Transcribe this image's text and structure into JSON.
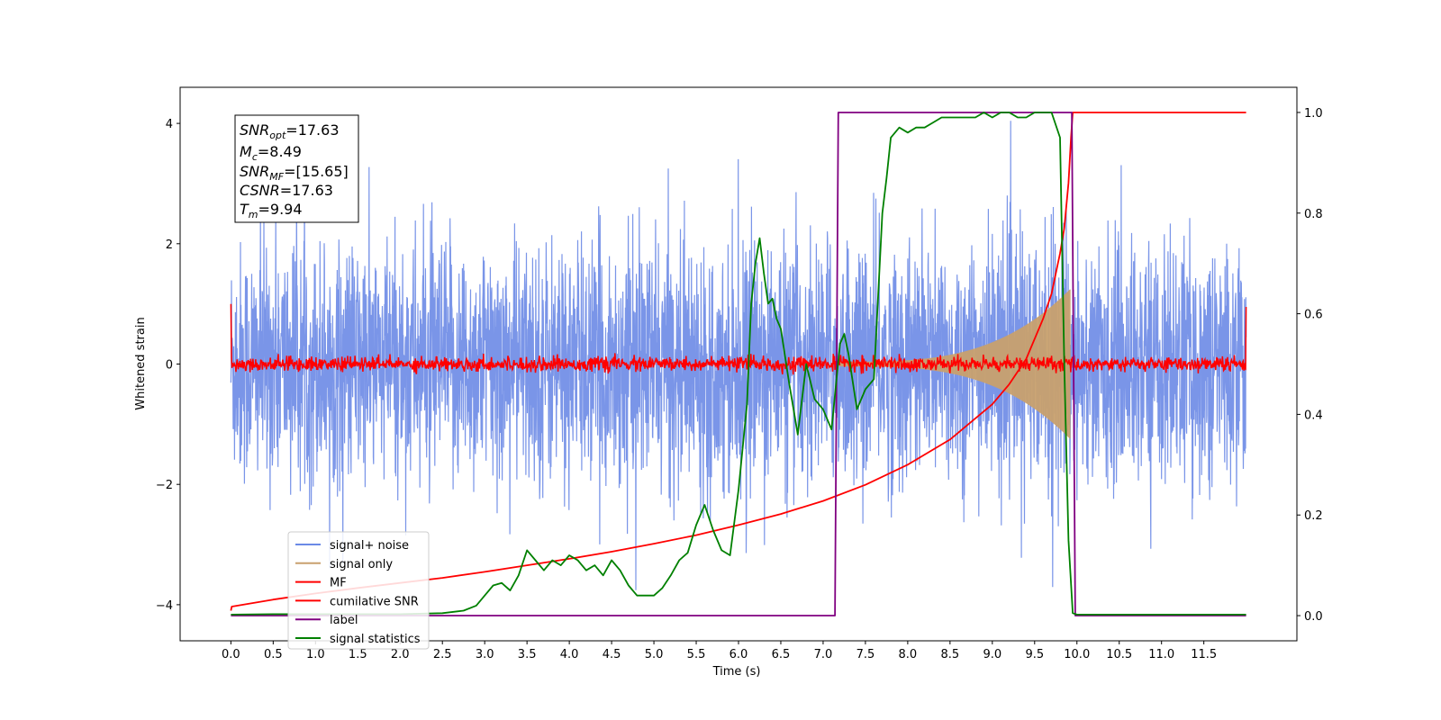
{
  "chart_data": {
    "type": "line",
    "xlabel": "Time (s)",
    "ylabel": "Whitened strain",
    "xlim": [
      -0.6,
      12.6
    ],
    "ylim": [
      -4.6,
      4.6
    ],
    "ylim_right": [
      -0.05,
      1.05
    ],
    "x_ticks": [
      "0.0",
      "0.5",
      "1.0",
      "1.5",
      "2.0",
      "2.5",
      "3.0",
      "3.5",
      "4.0",
      "4.5",
      "5.0",
      "5.5",
      "6.0",
      "6.5",
      "7.0",
      "7.5",
      "8.0",
      "8.5",
      "9.0",
      "9.5",
      "10.0",
      "10.5",
      "11.0",
      "11.5"
    ],
    "y_ticks_left": [
      -4,
      -2,
      0,
      2,
      4
    ],
    "y_ticks_left_labels": [
      "−4",
      "−2",
      "0",
      "2",
      "4"
    ],
    "y_ticks_right": [
      0.0,
      0.2,
      0.4,
      0.6,
      0.8,
      1.0
    ],
    "y_ticks_right_labels": [
      "0.0",
      "0.2",
      "0.4",
      "0.6",
      "0.8",
      "1.0"
    ],
    "legend_position": "lower-left",
    "stats": {
      "snr_opt": {
        "sym": "SNR",
        "sub": "opt",
        "text": "=17.63"
      },
      "mc": {
        "sym": "M",
        "sub": "c",
        "text": "=8.49"
      },
      "snr_mf": {
        "sym": "SNR",
        "sub": "MF",
        "text": "=[15.65]"
      },
      "csnr": {
        "sym": "CSNR",
        "sub": "",
        "text": "=17.63"
      },
      "tm": {
        "sym": "T",
        "sub": "m",
        "text": "=9.94"
      }
    },
    "series": [
      {
        "name": "signal+ noise",
        "color": "#6b8ae6",
        "axis": "left",
        "kind": "noise",
        "t_end": 12.0,
        "sigma": 1.0,
        "env_peak": 1.2,
        "env_t0": 7.2,
        "env_t1": 9.9
      },
      {
        "name": "signal only",
        "color": "#c8a06e",
        "axis": "left",
        "kind": "chirp",
        "t_start": 7.2,
        "t_end": 9.92,
        "peak_amplitude": 1.2
      },
      {
        "name": "MF",
        "color": "#ff0000",
        "axis": "left",
        "kind": "mf",
        "t_end": 12.0,
        "start_value": 1.0,
        "end_value": 0.95,
        "noise_sd": 0.06
      },
      {
        "name": "cumilative SNR",
        "color": "#ff0000",
        "axis": "right",
        "x": [
          0.0,
          0.01,
          0.5,
          1.0,
          1.5,
          2.0,
          2.5,
          3.0,
          3.5,
          4.0,
          4.5,
          5.0,
          5.5,
          6.0,
          6.5,
          7.0,
          7.5,
          8.0,
          8.5,
          9.0,
          9.2,
          9.4,
          9.6,
          9.7,
          9.8,
          9.85,
          9.9,
          9.93,
          9.95,
          12.0
        ],
        "y": [
          0.01,
          0.018,
          0.032,
          0.044,
          0.055,
          0.065,
          0.075,
          0.087,
          0.1,
          0.113,
          0.127,
          0.143,
          0.16,
          0.18,
          0.202,
          0.228,
          0.26,
          0.3,
          0.35,
          0.42,
          0.46,
          0.51,
          0.59,
          0.64,
          0.72,
          0.77,
          0.86,
          0.95,
          1.0,
          1.0
        ]
      },
      {
        "name": "label",
        "color": "#800080",
        "axis": "right",
        "x": [
          0.0,
          7.14,
          7.18,
          9.94,
          9.98,
          12.0
        ],
        "y": [
          0.0,
          0.0,
          1.0,
          1.0,
          0.0,
          0.0
        ]
      },
      {
        "name": "signal statistics",
        "color": "#008000",
        "axis": "right",
        "x": [
          0.0,
          0.5,
          1.0,
          1.5,
          2.0,
          2.5,
          2.75,
          2.9,
          3.0,
          3.1,
          3.2,
          3.3,
          3.4,
          3.5,
          3.6,
          3.7,
          3.8,
          3.9,
          4.0,
          4.1,
          4.2,
          4.3,
          4.4,
          4.5,
          4.6,
          4.7,
          4.8,
          4.9,
          5.0,
          5.1,
          5.2,
          5.3,
          5.4,
          5.5,
          5.6,
          5.7,
          5.8,
          5.9,
          6.0,
          6.1,
          6.15,
          6.2,
          6.25,
          6.3,
          6.35,
          6.4,
          6.45,
          6.5,
          6.6,
          6.7,
          6.8,
          6.9,
          7.0,
          7.1,
          7.2,
          7.25,
          7.3,
          7.4,
          7.5,
          7.6,
          7.7,
          7.75,
          7.8,
          7.9,
          8.0,
          8.1,
          8.2,
          8.3,
          8.4,
          8.5,
          8.6,
          8.7,
          8.8,
          8.9,
          9.0,
          9.1,
          9.2,
          9.3,
          9.4,
          9.5,
          9.6,
          9.7,
          9.8,
          9.85,
          9.9,
          9.95,
          10.0,
          12.0
        ],
        "y": [
          0.002,
          0.003,
          0.003,
          0.003,
          0.003,
          0.005,
          0.01,
          0.02,
          0.04,
          0.06,
          0.065,
          0.05,
          0.08,
          0.13,
          0.11,
          0.09,
          0.11,
          0.1,
          0.12,
          0.11,
          0.09,
          0.1,
          0.08,
          0.11,
          0.09,
          0.06,
          0.04,
          0.04,
          0.04,
          0.055,
          0.08,
          0.11,
          0.125,
          0.18,
          0.22,
          0.17,
          0.13,
          0.12,
          0.25,
          0.42,
          0.62,
          0.7,
          0.75,
          0.68,
          0.62,
          0.63,
          0.59,
          0.57,
          0.46,
          0.36,
          0.5,
          0.43,
          0.41,
          0.37,
          0.54,
          0.56,
          0.52,
          0.41,
          0.45,
          0.47,
          0.8,
          0.87,
          0.95,
          0.97,
          0.96,
          0.97,
          0.97,
          0.98,
          0.99,
          0.99,
          0.99,
          0.99,
          0.99,
          1.0,
          0.99,
          1.0,
          1.0,
          0.99,
          0.99,
          1.0,
          1.0,
          1.0,
          0.95,
          0.5,
          0.15,
          0.005,
          0.002,
          0.002
        ]
      }
    ]
  }
}
